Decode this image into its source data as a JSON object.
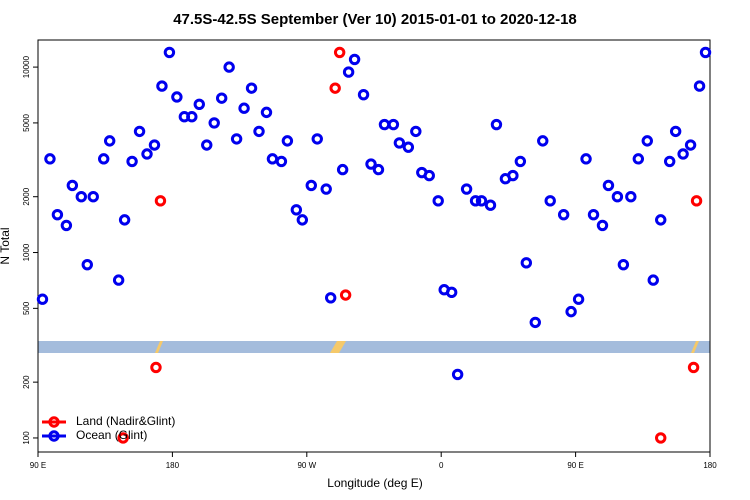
{
  "chart_data": {
    "type": "scatter",
    "title": "47.5S-42.5S September (Ver 10)   2015-01-01 to 2020-12-18",
    "x_label": "Longitude (deg E)",
    "y_label": "N Total",
    "log_y": true,
    "legend_position": "bottom-left",
    "xlim": [
      90,
      540
    ],
    "xticks": [
      {
        "value": 90,
        "label": "90 E"
      },
      180,
      {
        "value": 270,
        "label": "90 W"
      },
      {
        "value": 360,
        "label": "0"
      },
      {
        "value": 450,
        "label": "90 E"
      },
      {
        "value": 540,
        "label": "180"
      }
    ],
    "ylim": [
      84,
      14000
    ],
    "yticks": [
      100,
      200,
      500,
      1000,
      2000,
      5000,
      10000
    ],
    "series": [
      {
        "name": "Land (Nadir&Glint)",
        "color": "#ff0000",
        "x": [
          147,
          169,
          172,
          289,
          292,
          296,
          507,
          529,
          531
        ],
        "values": [
          100,
          240,
          1900,
          7700,
          12000,
          590,
          100,
          240,
          1900
        ]
      },
      {
        "name": "Ocean (Glint)",
        "color": "#0000ee",
        "x": [
          93,
          98,
          103,
          109,
          113,
          119,
          123,
          127,
          134,
          138,
          144,
          148,
          153,
          158,
          163,
          168,
          173,
          178,
          183,
          188,
          193,
          198,
          203,
          208,
          213,
          218,
          223,
          228,
          233,
          238,
          243,
          247,
          253,
          257,
          263,
          267,
          273,
          277,
          283,
          286,
          294,
          298,
          302,
          308,
          313,
          318,
          322,
          328,
          332,
          338,
          343,
          347,
          352,
          358,
          362,
          367,
          371,
          377,
          383,
          387,
          393,
          397,
          403,
          408,
          413,
          417,
          423,
          428,
          433,
          442,
          447,
          452,
          457,
          462,
          468,
          472,
          478,
          482,
          487,
          492,
          498,
          502,
          507,
          513,
          517,
          522,
          527,
          533,
          537
        ],
        "values": [
          560,
          3200,
          1600,
          1400,
          2300,
          2000,
          860,
          2000,
          3200,
          4000,
          710,
          1500,
          3100,
          4500,
          3400,
          3800,
          7900,
          12000,
          6900,
          5400,
          5400,
          6300,
          3800,
          5000,
          6800,
          10000,
          4100,
          6000,
          7700,
          4500,
          5700,
          3200,
          3100,
          4000,
          1700,
          1500,
          2300,
          4100,
          2200,
          570,
          2800,
          9400,
          11000,
          7100,
          3000,
          2800,
          4900,
          4900,
          3900,
          3700,
          4500,
          2700,
          2600,
          1900,
          630,
          610,
          220,
          2200,
          1900,
          1900,
          1800,
          4900,
          2500,
          2600,
          3100,
          880,
          420,
          4000,
          1900,
          1600,
          480,
          560,
          3200,
          1600,
          1400,
          2300,
          2000,
          860,
          2000,
          3200,
          4000,
          710,
          1500,
          3100,
          4500,
          3400,
          3800,
          7900,
          12000
        ]
      }
    ]
  }
}
